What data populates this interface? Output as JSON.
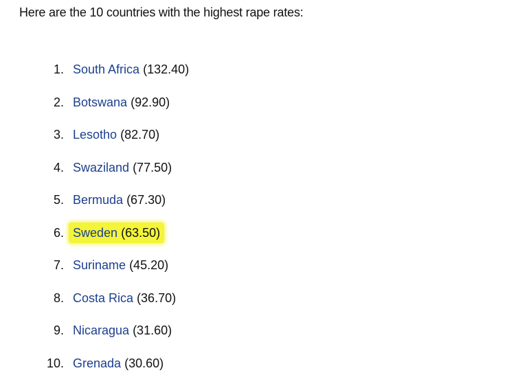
{
  "title": "Here are the 10 countries with the highest rape rates:",
  "items": [
    {
      "number": "1.",
      "country": "South Africa",
      "rate": "(132.40)"
    },
    {
      "number": "2.",
      "country": "Botswana",
      "rate": "(92.90)"
    },
    {
      "number": "3.",
      "country": "Lesotho",
      "rate": "(82.70)"
    },
    {
      "number": "4.",
      "country": "Swaziland",
      "rate": "(77.50)"
    },
    {
      "number": "5.",
      "country": "Bermuda",
      "rate": "(67.30)"
    },
    {
      "number": "6.",
      "country": "Sweden",
      "rate": "(63.50)",
      "highlighted": true
    },
    {
      "number": "7.",
      "country": "Suriname",
      "rate": "(45.20)"
    },
    {
      "number": "8.",
      "country": "Costa Rica",
      "rate": "(36.70)"
    },
    {
      "number": "9.",
      "country": "Nicaragua",
      "rate": "(31.60)"
    },
    {
      "number": "10.",
      "country": "Grenada",
      "rate": "(30.60)"
    }
  ]
}
